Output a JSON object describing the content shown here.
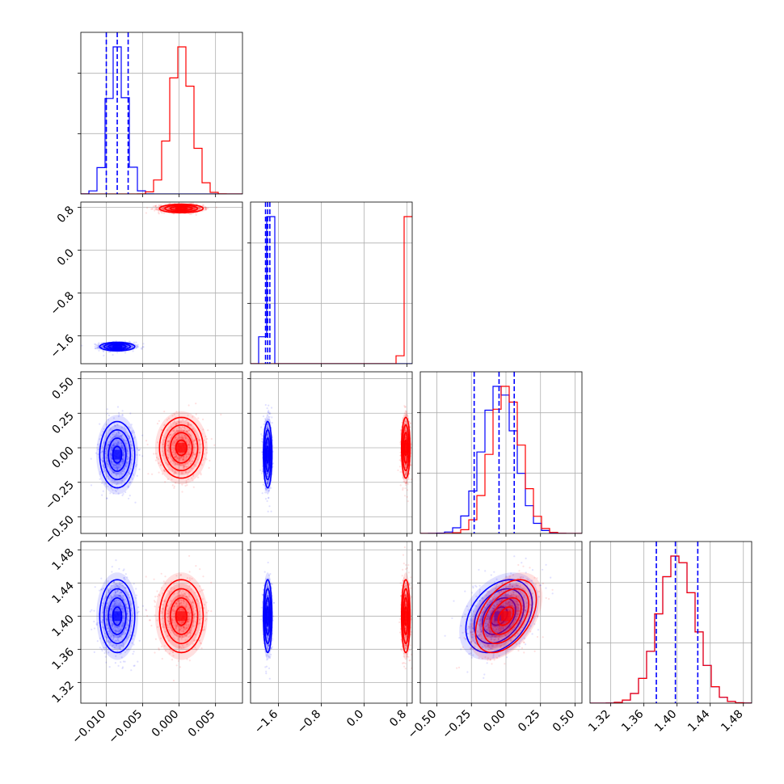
{
  "colors": {
    "series_a": "#0000ff",
    "series_b": "#ff0000",
    "grid": "#b0b0b0",
    "axis": "#000000"
  },
  "chart_data": {
    "type": "corner",
    "grid": true,
    "series": [
      {
        "color": "#0000ff",
        "means": [
          -0.0085,
          -1.8,
          -0.05,
          1.4
        ],
        "sds": [
          0.0012,
          0.04,
          0.12,
          0.022
        ]
      },
      {
        "color": "#ff0000",
        "means": [
          0.0003,
          0.78,
          0.0,
          1.4
        ],
        "sds": [
          0.0015,
          0.04,
          0.11,
          0.022
        ]
      }
    ],
    "correlation": {
      "params": [
        2,
        3
      ],
      "rho_series_b": 0.45,
      "rho_series_a": 0.35
    },
    "quantile_lines": {
      "color": "#0000ff",
      "values": [
        [
          -0.01,
          -0.0085,
          -0.007
        ],
        [
          -1.84,
          -1.8,
          -1.76
        ],
        [
          -0.23,
          -0.05,
          0.06
        ],
        [
          1.375,
          1.398,
          1.425
        ]
      ]
    },
    "params": [
      {
        "range": [
          -0.0135,
          0.0087
        ],
        "ticks": [
          "-0.010",
          "-0.005",
          "0.000",
          "0.005"
        ],
        "tick_values": [
          -0.01,
          -0.005,
          0.0,
          0.005
        ]
      },
      {
        "range": [
          -2.12,
          0.9
        ],
        "ticks": [
          "-1.6",
          "-0.8",
          "0.0",
          "0.8"
        ],
        "tick_values": [
          -1.6,
          -0.8,
          0.0,
          0.8
        ]
      },
      {
        "range": [
          -0.62,
          0.55
        ],
        "ticks": [
          "-0.50",
          "-0.25",
          "0.00",
          "0.25",
          "0.50"
        ],
        "tick_values": [
          -0.5,
          -0.25,
          0.0,
          0.25,
          0.5
        ]
      },
      {
        "range": [
          1.295,
          1.49
        ],
        "ticks": [
          "1.32",
          "1.36",
          "1.40",
          "1.44",
          "1.48"
        ],
        "tick_values": [
          1.32,
          1.36,
          1.4,
          1.44,
          1.48
        ]
      }
    ]
  }
}
